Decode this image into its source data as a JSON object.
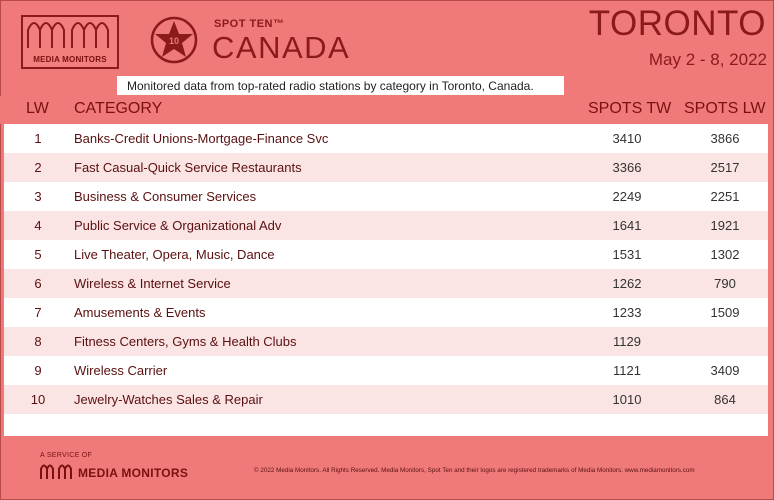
{
  "header": {
    "logo_text": "MEDIA MONITORS",
    "badge_number": "10",
    "spot_ten": "SPOT TEN™",
    "country": "CANADA",
    "city": "TORONTO",
    "date_range": "May 2 - 8, 2022",
    "subtitle": "Monitored data from top-rated radio stations by category in Toronto, Canada."
  },
  "table": {
    "columns": [
      "LW",
      "CATEGORY",
      "SPOTS TW",
      "SPOTS LW"
    ],
    "rows": [
      {
        "lw": "1",
        "category": "Banks-Credit Unions-Mortgage-Finance Svc",
        "spots_tw": "3410",
        "spots_lw": "3866"
      },
      {
        "lw": "2",
        "category": "Fast Casual-Quick Service Restaurants",
        "spots_tw": "3366",
        "spots_lw": "2517"
      },
      {
        "lw": "3",
        "category": "Business & Consumer Services",
        "spots_tw": "2249",
        "spots_lw": "2251"
      },
      {
        "lw": "4",
        "category": "Public Service & Organizational Adv",
        "spots_tw": "1641",
        "spots_lw": "1921"
      },
      {
        "lw": "5",
        "category": "Live Theater, Opera, Music, Dance",
        "spots_tw": "1531",
        "spots_lw": "1302"
      },
      {
        "lw": "6",
        "category": "Wireless & Internet Service",
        "spots_tw": "1262",
        "spots_lw": "790"
      },
      {
        "lw": "7",
        "category": "Amusements & Events",
        "spots_tw": "1233",
        "spots_lw": "1509"
      },
      {
        "lw": "8",
        "category": "Fitness Centers, Gyms & Health Clubs",
        "spots_tw": "1129",
        "spots_lw": ""
      },
      {
        "lw": "9",
        "category": "Wireless Carrier",
        "spots_tw": "1121",
        "spots_lw": "3409"
      },
      {
        "lw": "10",
        "category": "Jewelry-Watches Sales & Repair",
        "spots_tw": "1010",
        "spots_lw": "864"
      }
    ]
  },
  "footer": {
    "service_of": "A SERVICE OF",
    "brand": "MEDIA MONITORS",
    "copyright": "© 2022 Media Monitors. All Rights Reserved. Media Monitors, Spot Ten and their logos are registered trademarks of Media Monitors. www.mediamonitors.com"
  },
  "colors": {
    "background": "#f07878",
    "brand_dark_red": "#8b1a1a",
    "row_alt": "#fbe4e4"
  },
  "icons": [
    "media-monitors-logo-icon",
    "star-badge-icon"
  ]
}
